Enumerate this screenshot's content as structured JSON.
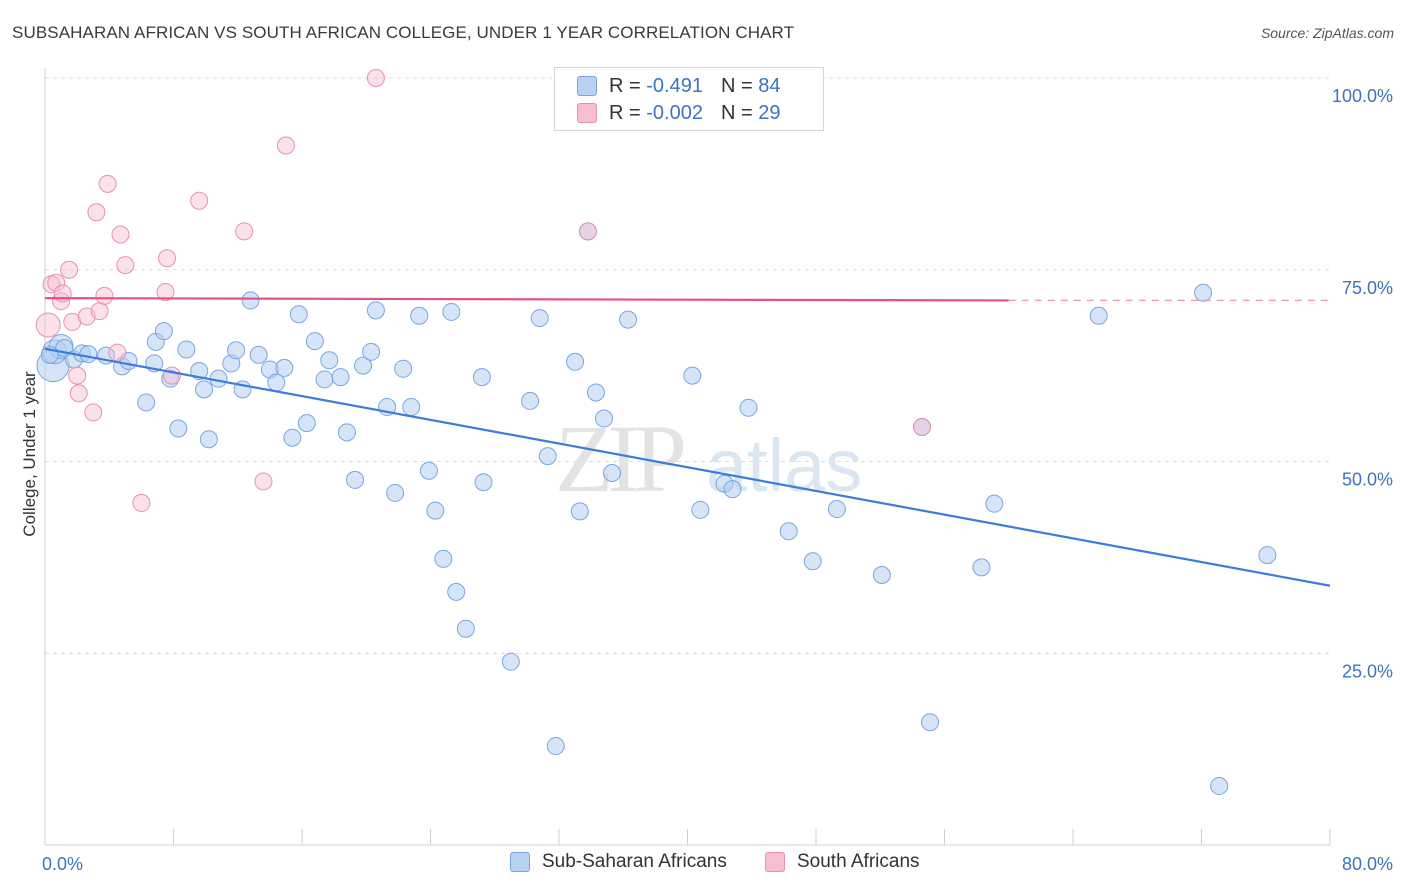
{
  "title": "SUBSAHARAN AFRICAN VS SOUTH AFRICAN COLLEGE, UNDER 1 YEAR CORRELATION CHART",
  "source": "Source: ZipAtlas.com",
  "watermark": {
    "zip": "ZIP",
    "atlas": "atlas"
  },
  "legend": {
    "row1": {
      "r_label": "R = ",
      "r_value": "-0.491",
      "n_label": "N = ",
      "n_value": "84"
    },
    "row2": {
      "r_label": "R = ",
      "r_value": "-0.002",
      "n_label": "N = ",
      "n_value": "29"
    }
  },
  "colors": {
    "blue": "#3b7dd8",
    "blue_fill": "#b9d2f3",
    "pink": "#e8517f",
    "pink_fill": "#f7bed0",
    "axis_label": "#3b73c4"
  },
  "chart_data": {
    "type": "scatter",
    "title": "SUBSAHARAN AFRICAN VS SOUTH AFRICAN COLLEGE, UNDER 1 YEAR CORRELATION CHART",
    "xlabel": "",
    "ylabel": "College, Under 1 year",
    "xlim": [
      0,
      80
    ],
    "ylim": [
      0,
      100
    ],
    "x_tick_labels": [
      "0.0%",
      "80.0%"
    ],
    "y_ticks": [
      25,
      50,
      75,
      100
    ],
    "y_tick_labels": [
      "25.0%",
      "50.0%",
      "75.0%",
      "100.0%"
    ],
    "grid": "horizontal dashed",
    "legend_placement": "top-center",
    "series": [
      {
        "name": "Sub-Saharan Africans",
        "color": "#3b7dd8",
        "trend": {
          "x": [
            0,
            80
          ],
          "y": [
            64.7,
            33.8
          ]
        },
        "points": [
          [
            0.5,
            62.5,
            3
          ],
          [
            0.6,
            64.3,
            2
          ],
          [
            1.0,
            65.0,
            2
          ],
          [
            1.2,
            64.8,
            1
          ],
          [
            1.8,
            63.3,
            1
          ],
          [
            2.3,
            64.1,
            1
          ],
          [
            2.7,
            64.0,
            1
          ],
          [
            3.8,
            63.8,
            1
          ],
          [
            4.8,
            62.4,
            1
          ],
          [
            5.2,
            63.1,
            1
          ],
          [
            6.3,
            57.7,
            1
          ],
          [
            6.8,
            62.8,
            1
          ],
          [
            6.9,
            65.6,
            1
          ],
          [
            7.4,
            67.0,
            1
          ],
          [
            7.8,
            60.8,
            1
          ],
          [
            8.3,
            54.3,
            1
          ],
          [
            8.8,
            64.6,
            1
          ],
          [
            9.6,
            61.8,
            1
          ],
          [
            9.9,
            59.4,
            1
          ],
          [
            10.2,
            52.9,
            1
          ],
          [
            10.8,
            60.8,
            1
          ],
          [
            11.6,
            62.8,
            1
          ],
          [
            11.9,
            64.5,
            1
          ],
          [
            12.3,
            59.4,
            1
          ],
          [
            12.8,
            71.0,
            1
          ],
          [
            13.3,
            63.9,
            1
          ],
          [
            14.0,
            62.0,
            1
          ],
          [
            14.4,
            60.3,
            1
          ],
          [
            14.9,
            62.2,
            1
          ],
          [
            15.4,
            53.1,
            1
          ],
          [
            15.8,
            69.2,
            1
          ],
          [
            16.3,
            55.0,
            1
          ],
          [
            16.8,
            65.7,
            1
          ],
          [
            17.4,
            60.7,
            1
          ],
          [
            17.7,
            63.2,
            1
          ],
          [
            18.4,
            61.0,
            1
          ],
          [
            18.8,
            53.8,
            1
          ],
          [
            19.3,
            47.6,
            1
          ],
          [
            19.8,
            62.5,
            1
          ],
          [
            20.3,
            64.3,
            1
          ],
          [
            20.6,
            69.7,
            1
          ],
          [
            21.3,
            57.1,
            1
          ],
          [
            21.8,
            45.9,
            1
          ],
          [
            22.3,
            62.1,
            1
          ],
          [
            22.8,
            57.1,
            1
          ],
          [
            23.3,
            69.0,
            1
          ],
          [
            23.9,
            48.8,
            1
          ],
          [
            24.3,
            43.6,
            1
          ],
          [
            24.8,
            37.3,
            1
          ],
          [
            25.3,
            69.5,
            1
          ],
          [
            25.6,
            33.0,
            1
          ],
          [
            26.2,
            28.2,
            1
          ],
          [
            27.2,
            61.0,
            1
          ],
          [
            27.3,
            47.3,
            1
          ],
          [
            29.0,
            23.9,
            1
          ],
          [
            30.2,
            57.9,
            1
          ],
          [
            30.8,
            68.7,
            1
          ],
          [
            31.3,
            50.7,
            1
          ],
          [
            31.8,
            12.9,
            1
          ],
          [
            33.0,
            63.0,
            1
          ],
          [
            33.3,
            43.5,
            1
          ],
          [
            33.8,
            80.0,
            1
          ],
          [
            34.3,
            59.0,
            1
          ],
          [
            34.8,
            55.6,
            1
          ],
          [
            35.3,
            48.5,
            1
          ],
          [
            36.3,
            68.5,
            1
          ],
          [
            40.3,
            61.2,
            1
          ],
          [
            40.8,
            43.7,
            1
          ],
          [
            42.3,
            47.1,
            1
          ],
          [
            42.8,
            46.4,
            1
          ],
          [
            43.8,
            57.0,
            1
          ],
          [
            46.3,
            40.9,
            1
          ],
          [
            47.8,
            37.0,
            1
          ],
          [
            49.3,
            43.8,
            1
          ],
          [
            52.1,
            35.2,
            1
          ],
          [
            54.6,
            54.5,
            1
          ],
          [
            55.1,
            16.0,
            1
          ],
          [
            58.3,
            36.2,
            1
          ],
          [
            59.1,
            44.5,
            1
          ],
          [
            65.6,
            69.0,
            1
          ],
          [
            72.1,
            72.0,
            1
          ],
          [
            73.1,
            7.7,
            1
          ],
          [
            76.1,
            37.8,
            1
          ],
          [
            0.3,
            63.9,
            1
          ]
        ]
      },
      {
        "name": "South Africans",
        "color": "#e8517f",
        "trend": {
          "x": [
            0,
            60
          ],
          "y": [
            71.3,
            71.0
          ],
          "dashed_to": 80
        },
        "points": [
          [
            0.2,
            67.8,
            2
          ],
          [
            0.4,
            73.1,
            1
          ],
          [
            0.7,
            73.3,
            1
          ],
          [
            1.0,
            70.9,
            1
          ],
          [
            1.1,
            71.9,
            1
          ],
          [
            1.5,
            75.0,
            1
          ],
          [
            1.7,
            68.2,
            1
          ],
          [
            2.0,
            61.2,
            1
          ],
          [
            2.1,
            58.9,
            1
          ],
          [
            2.6,
            68.9,
            1
          ],
          [
            3.0,
            56.4,
            1
          ],
          [
            3.2,
            82.5,
            1
          ],
          [
            3.4,
            69.6,
            1
          ],
          [
            3.7,
            71.6,
            1
          ],
          [
            3.9,
            86.2,
            1
          ],
          [
            4.5,
            64.2,
            1
          ],
          [
            4.7,
            79.6,
            1
          ],
          [
            5.0,
            75.6,
            1
          ],
          [
            6.0,
            44.6,
            1
          ],
          [
            7.5,
            72.1,
            1
          ],
          [
            7.6,
            76.5,
            1
          ],
          [
            7.9,
            61.2,
            1
          ],
          [
            9.6,
            84.0,
            1
          ],
          [
            12.4,
            80.0,
            1
          ],
          [
            13.6,
            47.4,
            1
          ],
          [
            15.0,
            91.2,
            1
          ],
          [
            20.6,
            100.0,
            1
          ],
          [
            33.8,
            80.0,
            1
          ],
          [
            54.6,
            54.5,
            1
          ]
        ]
      }
    ]
  },
  "bottom_legend": {
    "item1": "Sub-Saharan Africans",
    "item2": "South Africans"
  }
}
